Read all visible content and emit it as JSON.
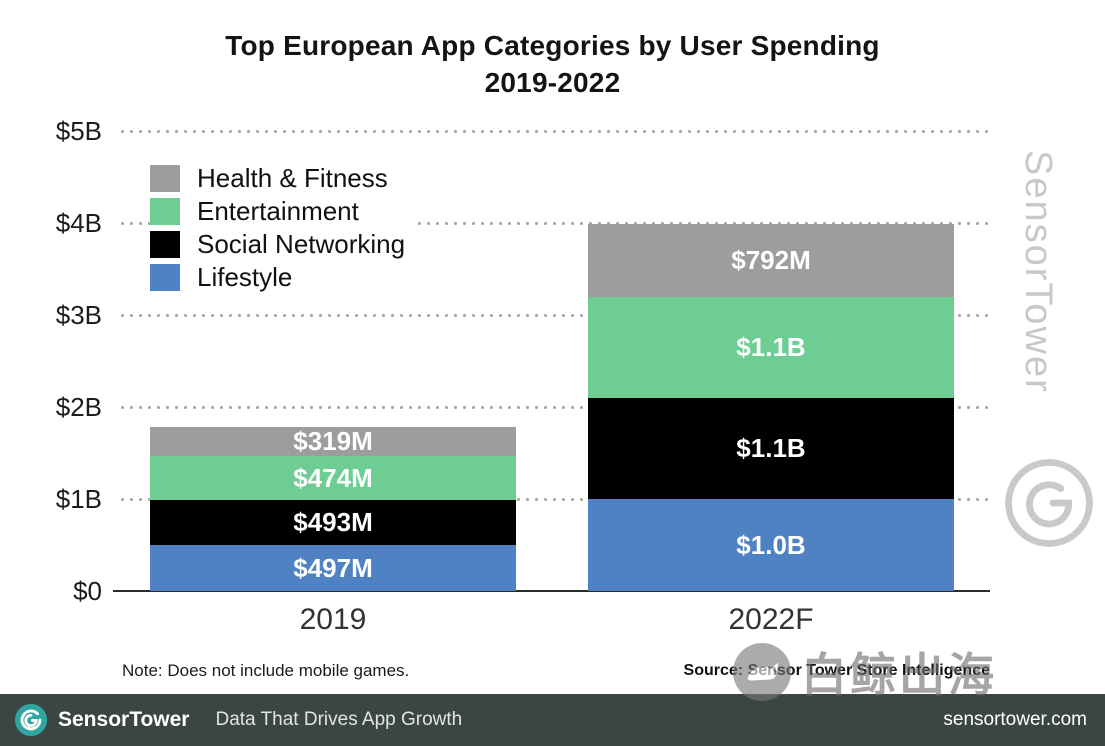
{
  "title": {
    "line1": "Top European App Categories by User Spending",
    "line2": "2019-2022"
  },
  "chart_data": {
    "type": "bar",
    "stacked": true,
    "title": "Top European App Categories by User Spending 2019-2022",
    "categories": [
      "2019",
      "2022F"
    ],
    "value_unit": "USD millions",
    "ylim": [
      0,
      5000
    ],
    "grid": "dotted-horizontal",
    "legend_position": "top-left-inside",
    "stack_order": "bottom-to-top",
    "yticks": [
      {
        "value": 5000,
        "label": "$5B"
      },
      {
        "value": 4000,
        "label": "$4B"
      },
      {
        "value": 3000,
        "label": "$3B"
      },
      {
        "value": 2000,
        "label": "$2B"
      },
      {
        "value": 1000,
        "label": "$1B"
      },
      {
        "value": 0,
        "label": "$0"
      }
    ],
    "series": [
      {
        "name": "Lifestyle",
        "color": "#4f82c2",
        "values": [
          497,
          1000
        ],
        "labels": [
          "$497M",
          "$1.0B"
        ]
      },
      {
        "name": "Social Networking",
        "color": "#000000",
        "values": [
          493,
          1100
        ],
        "labels": [
          "$493M",
          "$1.1B"
        ]
      },
      {
        "name": "Entertainment",
        "color": "#6ecd92",
        "values": [
          474,
          1100
        ],
        "labels": [
          "$474M",
          "$1.1B"
        ]
      },
      {
        "name": "Health & Fitness",
        "color": "#9d9d9d",
        "values": [
          319,
          792
        ],
        "labels": [
          "$319M",
          "$792M"
        ]
      }
    ],
    "legend": [
      {
        "label": "Health & Fitness",
        "color": "#9d9d9d"
      },
      {
        "label": "Entertainment",
        "color": "#6ecd92"
      },
      {
        "label": "Social Networking",
        "color": "#000000"
      },
      {
        "label": "Lifestyle",
        "color": "#4f82c2"
      }
    ]
  },
  "note": "Note: Does not include mobile games.",
  "source": "Source: Sensor Tower Store Intelligence",
  "side_watermark": "SensorTower",
  "overlay_watermark": "白鲸出海",
  "footer": {
    "brand": "SensorTower",
    "tagline": "Data That Drives App Growth",
    "site": "sensortower.com"
  }
}
